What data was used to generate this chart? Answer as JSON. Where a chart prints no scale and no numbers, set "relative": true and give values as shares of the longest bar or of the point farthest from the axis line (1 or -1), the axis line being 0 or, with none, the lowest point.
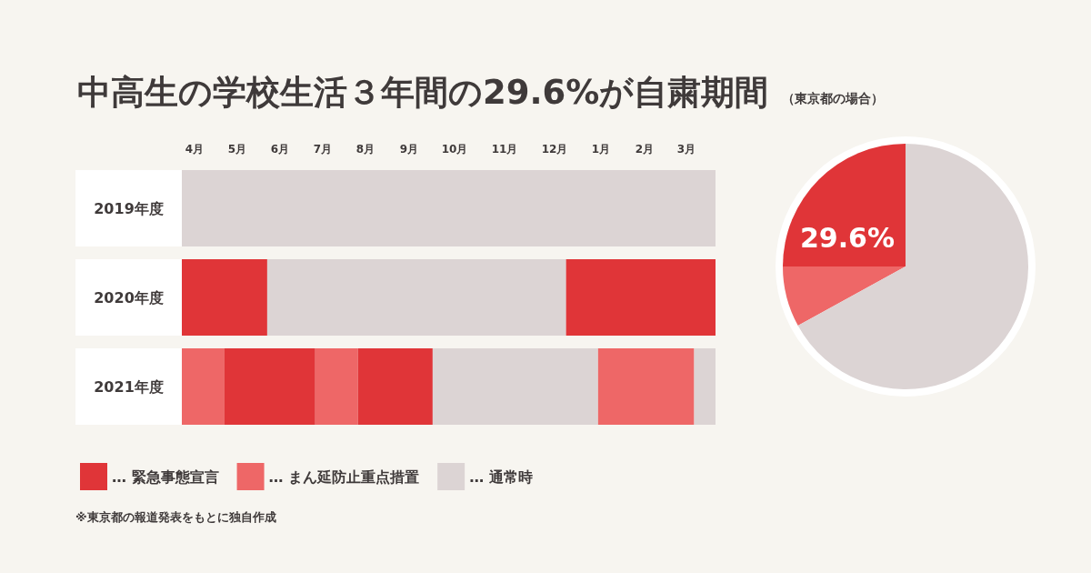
{
  "chart_data": [
    {
      "type": "bar",
      "title": "中高生の学校生活３年間の29.6%が自粛期間",
      "orientation": "horizontal",
      "stacked": true,
      "relative": true,
      "categories": [
        "2019年度",
        "2020年度",
        "2021年度"
      ],
      "series": [
        {
          "name": "… 緊急事態宣言",
          "color": "#e03538",
          "values": [
            null,
            0.16,
            null
          ]
        },
        {
          "name": "… まん延防止重点措置",
          "color": "#ee6767",
          "values": [
            null,
            null,
            0.08
          ]
        },
        {
          "color": "#e03538",
          "values": [
            null,
            null,
            0.17
          ]
        },
        {
          "color": "#ee6767",
          "values": [
            null,
            null,
            0.08
          ]
        },
        {
          "color": "#e03538",
          "values": [
            null,
            null,
            0.14
          ]
        },
        {
          "name": "… 通常時",
          "color": "#dcd4d4",
          "values": [
            1,
            0.56,
            0.31
          ]
        },
        {
          "color": "#e03538",
          "values": [
            null,
            0.28,
            null
          ]
        },
        {
          "color": "#ee6767",
          "values": [
            null,
            null,
            0.18
          ]
        },
        {
          "color": "#dcd4d4",
          "values": [
            null,
            null,
            0.04
          ]
        }
      ],
      "legend": "bottom left",
      "annotations": [
        "4月",
        "5月",
        "6月",
        "7月",
        "8月",
        "9月",
        "10月",
        "11月",
        "12月",
        "1月",
        "2月",
        "3月",
        "※東京都の報道発表をもとに独自作成"
      ]
    },
    {
      "type": "pie",
      "subtitle": "（東京都の場合）",
      "categories": [
        null,
        null,
        null
      ],
      "values": [
        25,
        8,
        67
      ],
      "colors": [
        "#e03538",
        "#ee6767",
        "#dcd4d4"
      ],
      "annotations": [
        "29.6%"
      ]
    }
  ]
}
